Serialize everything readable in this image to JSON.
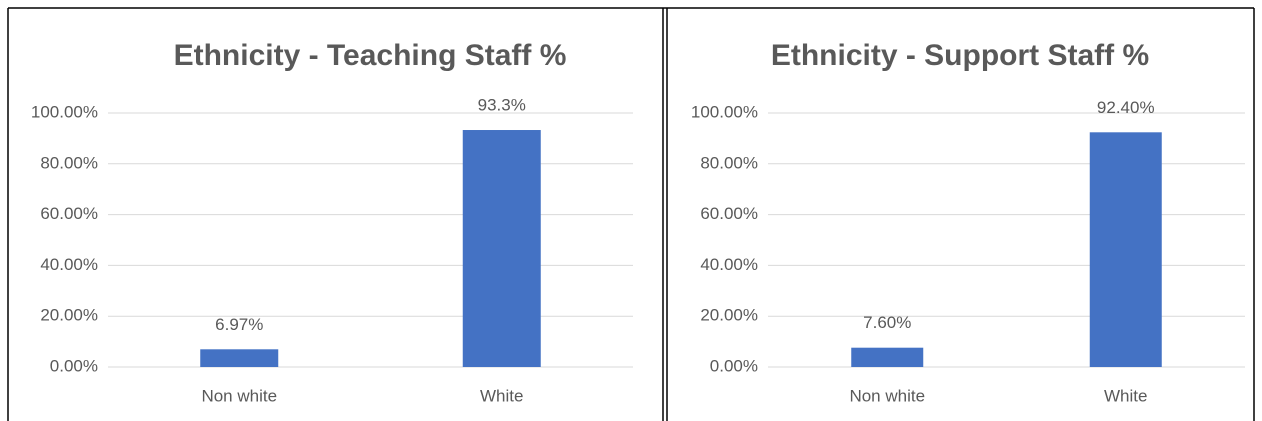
{
  "chart_data": [
    {
      "type": "bar",
      "title": "Ethnicity - Teaching Staff %",
      "categories": [
        "Non white",
        "White"
      ],
      "values": [
        6.97,
        93.3
      ],
      "value_labels": [
        "6.97%",
        "93.3%"
      ],
      "color": "#4472c4",
      "ylim": [
        0,
        100
      ],
      "yticks": [
        {
          "value": 0,
          "label": "0.00%"
        },
        {
          "value": 20,
          "label": "20.00%"
        },
        {
          "value": 40,
          "label": "40.00%"
        },
        {
          "value": 60,
          "label": "60.00%"
        },
        {
          "value": 80,
          "label": "80.00%"
        },
        {
          "value": 100,
          "label": "100.00%"
        }
      ],
      "grid": true
    },
    {
      "type": "bar",
      "title": "Ethnicity - Support Staff %",
      "categories": [
        "Non white",
        "White"
      ],
      "values": [
        7.6,
        92.4
      ],
      "value_labels": [
        "7.60%",
        "92.40%"
      ],
      "color": "#4472c4",
      "ylim": [
        0,
        100
      ],
      "yticks": [
        {
          "value": 0,
          "label": "0.00%"
        },
        {
          "value": 20,
          "label": "20.00%"
        },
        {
          "value": 40,
          "label": "40.00%"
        },
        {
          "value": 60,
          "label": "60.00%"
        },
        {
          "value": 80,
          "label": "80.00%"
        },
        {
          "value": 100,
          "label": "100.00%"
        }
      ],
      "grid": true
    }
  ]
}
